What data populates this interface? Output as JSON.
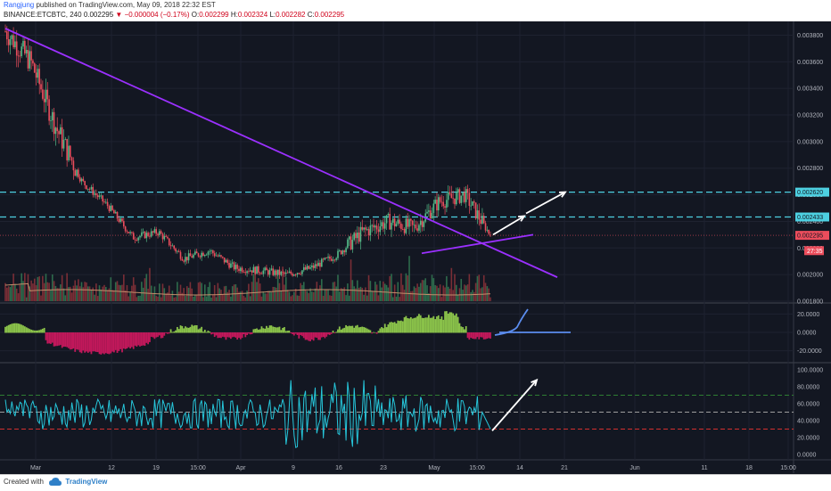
{
  "header": {
    "author": "Rangjung",
    "published_text": "published on TradingView.com, May 09, 2018 22:32 EST",
    "symbol": "BINANCE:ETCBTC, 240",
    "last": "0.002295",
    "change_arrow": "▼",
    "change": "−0.000004 (−0.17%)",
    "o_label": "O:",
    "o_value": "0.002299",
    "h_label": "H:",
    "h_value": "0.002324",
    "l_label": "L:",
    "l_value": "0.002282",
    "c_label": "C:",
    "c_value": "0.002295"
  },
  "footer": {
    "created_with": "Created with",
    "brand": "TradingView"
  },
  "colors": {
    "background": "#131722",
    "candle_up": "#53b987",
    "candle_down": "#eb4d5c",
    "trendline": "#9b30ff",
    "hline": "#4dd0e1",
    "macd_pos": "#8bc34a",
    "macd_neg": "#c2185b",
    "rsi": "#26c6da",
    "arrow": "#ffffff",
    "macd_projection": "#5b8def"
  },
  "chart_data": [
    {
      "type": "candlestick",
      "title": "ETCBTC 240",
      "ylim": [
        0.0018,
        0.00385
      ],
      "y_ticks": [
        "0.003800",
        "0.003600",
        "0.003400",
        "0.003200",
        "0.003000",
        "0.002800",
        "0.002600",
        "0.002400",
        "0.002200",
        "0.002000",
        "0.001800"
      ],
      "x_ticks": [
        "Mar",
        "12",
        "19",
        "15:00",
        "Apr",
        "9",
        "16",
        "23",
        "May",
        "15:00",
        "14",
        "21",
        "Jun",
        "11",
        "18",
        "15:00"
      ],
      "price_labels": [
        {
          "text": "0.002620",
          "value": 0.00262,
          "color": "#4dd0e1"
        },
        {
          "text": "0.002433",
          "value": 0.002433,
          "color": "#4dd0e1"
        },
        {
          "text": "0.002295",
          "value": 0.002295,
          "color": "#eb4d5c"
        },
        {
          "text": "27:35",
          "value": 0.00218,
          "color": "#eb4d5c"
        }
      ],
      "horizontal_lines": [
        0.00262,
        0.002433
      ],
      "key_points": [
        {
          "label": "Feb 27",
          "value": 0.00383
        },
        {
          "label": "Mar 1",
          "value": 0.0036
        },
        {
          "label": "Mar 3",
          "value": 0.0031
        },
        {
          "label": "Mar 5",
          "value": 0.0027
        },
        {
          "label": "Mar 7",
          "value": 0.00252
        },
        {
          "label": "Mar 9",
          "value": 0.00228
        },
        {
          "label": "Mar 13",
          "value": 0.00232
        },
        {
          "label": "Mar 17",
          "value": 0.00212
        },
        {
          "label": "Mar 21",
          "value": 0.00218
        },
        {
          "label": "Mar 26",
          "value": 0.00205
        },
        {
          "label": "Apr 3",
          "value": 0.00203
        },
        {
          "label": "Apr 10",
          "value": 0.002
        },
        {
          "label": "Apr 16",
          "value": 0.00205
        },
        {
          "label": "Apr 20",
          "value": 0.00215
        },
        {
          "label": "Apr 24",
          "value": 0.00232
        },
        {
          "label": "Apr 28",
          "value": 0.0024
        },
        {
          "label": "May 2",
          "value": 0.00235
        },
        {
          "label": "May 5",
          "value": 0.00255
        },
        {
          "label": "May 7",
          "value": 0.0026
        },
        {
          "label": "May 9",
          "value": 0.002295
        }
      ]
    },
    {
      "type": "bar",
      "title": "MACD histogram",
      "ylim": [
        -30,
        30
      ],
      "y_ticks": [
        "20.0000",
        "0.0000",
        "-20.0000"
      ]
    },
    {
      "type": "line",
      "title": "RSI",
      "ylim": [
        0,
        100
      ],
      "y_ticks": [
        "100.0000",
        "80.0000",
        "60.0000",
        "40.0000",
        "20.0000",
        "0.0000"
      ],
      "levels": [
        70,
        50,
        30
      ]
    }
  ]
}
